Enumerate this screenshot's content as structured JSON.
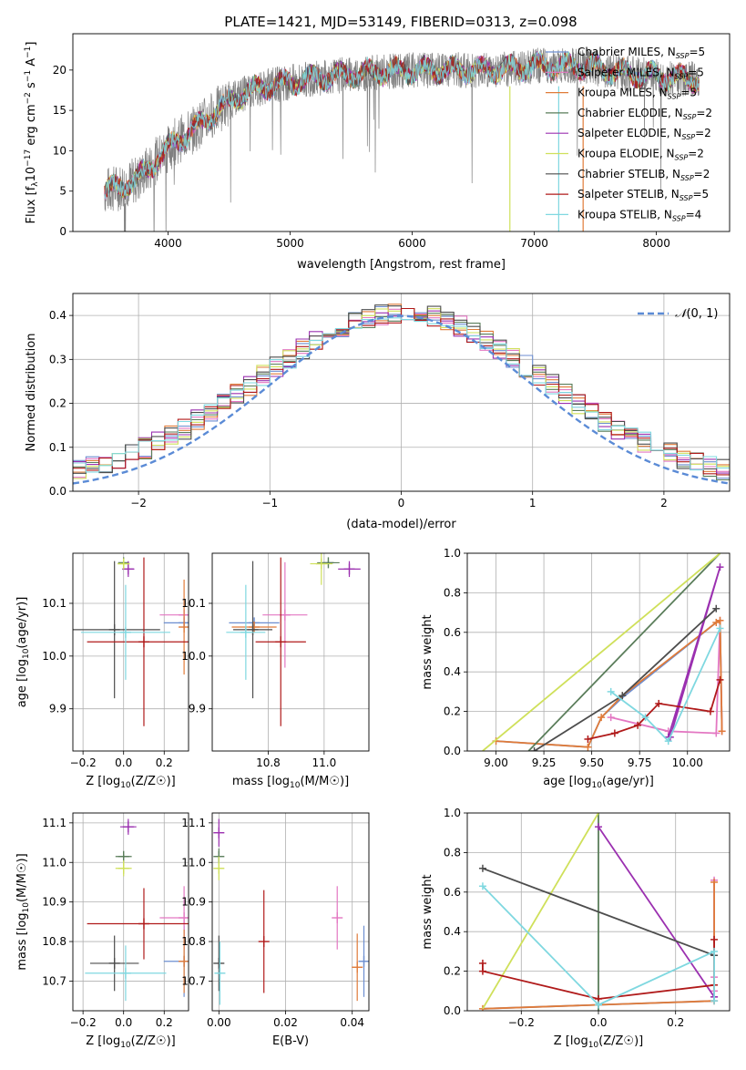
{
  "title": "PLATE=1421, MJD=53149, FIBERID=0313, z=0.098",
  "series": [
    {
      "name": "Chabrier MILES, N_SSP=5",
      "sub": "SSP",
      "label_pre": "Chabrier MILES, N",
      "label_post": "=5",
      "color": "#6c8ed0"
    },
    {
      "name": "Salpeter MILES, N_SSP=5",
      "sub": "SSP",
      "label_pre": "Salpeter MILES, N",
      "label_post": "=5",
      "color": "#e377c2"
    },
    {
      "name": "Kroupa MILES, N_SSP=5",
      "sub": "SSP",
      "label_pre": "Kroupa MILES, N",
      "label_post": "=5",
      "color": "#e07b39"
    },
    {
      "name": "Chabrier ELODIE, N_SSP=2",
      "sub": "SSP",
      "label_pre": "Chabrier ELODIE, N",
      "label_post": "=2",
      "color": "#5a7d5a"
    },
    {
      "name": "Salpeter ELODIE, N_SSP=2",
      "sub": "SSP",
      "label_pre": "Salpeter ELODIE, N",
      "label_post": "=2",
      "color": "#9b30b0"
    },
    {
      "name": "Kroupa ELODIE, N_SSP=2",
      "sub": "SSP",
      "label_pre": "Kroupa ELODIE, N",
      "label_post": "=2",
      "color": "#cfe05a"
    },
    {
      "name": "Chabrier STELIB, N_SSP=2",
      "sub": "SSP",
      "label_pre": "Chabrier STELIB, N",
      "label_post": "=2",
      "color": "#4d4d4d"
    },
    {
      "name": "Salpeter STELIB, N_SSP=5",
      "sub": "SSP",
      "label_pre": "Salpeter STELIB, N",
      "label_post": "=5",
      "color": "#b01a1a"
    },
    {
      "name": "Kroupa STELIB, N_SSP=4",
      "sub": "SSP",
      "label_pre": "Kroupa STELIB, N",
      "label_post": "=4",
      "color": "#7fd8e0"
    }
  ],
  "chart_data": [
    {
      "type": "line",
      "title": "PLATE=1421, MJD=53149, FIBERID=0313, z=0.098",
      "xlabel": "wavelength [Angstrom, rest frame]",
      "ylabel": "Flux [f_λ 10^-17 erg cm^-2 s^-1 A^-1]",
      "ylabel_main": "Flux [f",
      "ylabel_parts": [
        "λ",
        "10",
        "−17",
        " erg cm",
        "−2",
        " s",
        "−1",
        " A",
        "−1",
        "]"
      ],
      "xlim": [
        3220,
        8600
      ],
      "ylim": [
        0,
        24.5
      ],
      "xticks": [
        4000,
        5000,
        6000,
        7000,
        8000
      ],
      "yticks": [
        0,
        5,
        10,
        15,
        20
      ],
      "legend": "right",
      "spectrum_knots": {
        "x": [
          3480,
          3600,
          3750,
          3850,
          3950,
          4050,
          4200,
          4400,
          4600,
          4800,
          5000,
          5200,
          5500,
          5800,
          6100,
          6400,
          6700,
          7000,
          7200,
          7400,
          7600,
          7800,
          8000,
          8200,
          8350
        ],
        "y": [
          5.0,
          5.5,
          6.5,
          8.0,
          9.5,
          11.0,
          12.5,
          15.0,
          17.0,
          18.0,
          18.5,
          19.0,
          19.5,
          19.8,
          20.0,
          20.0,
          20.0,
          20.5,
          20.5,
          20.5,
          20.0,
          19.5,
          19.3,
          19.0,
          18.8
        ]
      }
    },
    {
      "type": "bar",
      "xlabel": "(data-model)/error",
      "ylabel": "Normed distribution",
      "xlim": [
        -2.5,
        2.5
      ],
      "ylim": [
        0,
        0.45
      ],
      "xticks": [
        -2,
        -1,
        0,
        1,
        2
      ],
      "xtick_labels": [
        "−2",
        "−1",
        "0",
        "1",
        "2"
      ],
      "yticks": [
        0.0,
        0.1,
        0.2,
        0.3,
        0.4
      ],
      "ytick_labels": [
        "0.0",
        "0.1",
        "0.2",
        "0.3",
        "0.4"
      ],
      "bin_width": 0.1,
      "reference_curve": {
        "name": "N(0,1)",
        "label_main": "𝒩",
        "label_rest": "(0, 1)",
        "mean": 0,
        "sigma": 1,
        "color": "#5b8bd6"
      },
      "legend": "top-right"
    },
    {
      "type": "scatter",
      "xlabel": "Z [log10(Z/Z☉)]",
      "ylabel": "age [log10(age/yr)]",
      "xlim": [
        -0.25,
        0.32
      ],
      "ylim": [
        9.82,
        10.195
      ],
      "xticks": [
        -0.2,
        0.0,
        0.2
      ],
      "xtick_labels": [
        "−0.2",
        "0.0",
        "0.2"
      ],
      "yticks": [
        9.9,
        10.0,
        10.1
      ],
      "ytick_labels": [
        "9.9",
        "10.0",
        "10.1"
      ],
      "points": [
        {
          "series": 0,
          "x": 0.298,
          "y": 10.063,
          "xerr": 0.1,
          "yerr": 0.0
        },
        {
          "series": 1,
          "x": 0.298,
          "y": 10.078,
          "xerr": 0.12,
          "yerr": 0.0
        },
        {
          "series": 2,
          "x": 0.298,
          "y": 10.055,
          "xerr": 0.0,
          "yerr": 0.09
        },
        {
          "series": 3,
          "x": 0.0,
          "y": 10.177,
          "xerr": 0.0,
          "yerr": 0.005
        },
        {
          "series": 4,
          "x": 0.023,
          "y": 10.165,
          "xerr": 0.03,
          "yerr": 0.015
        },
        {
          "series": 5,
          "x": 0.0,
          "y": 10.175,
          "xerr": 0.03,
          "yerr": 0.01
        },
        {
          "series": 6,
          "x": -0.045,
          "y": 10.05,
          "xerr": 0.225,
          "yerr": 0.13
        },
        {
          "series": 7,
          "x": 0.1,
          "y": 10.027,
          "xerr": 0.28,
          "yerr": 0.16
        },
        {
          "series": 8,
          "x": 0.01,
          "y": 10.045,
          "xerr": 0.22,
          "yerr": 0.09
        }
      ]
    },
    {
      "type": "scatter",
      "xlabel": "mass [log10(M/M☉)]",
      "ylabel": "",
      "xlim": [
        10.6,
        11.16
      ],
      "ylim": [
        9.82,
        10.195
      ],
      "xticks": [
        10.8,
        11.0
      ],
      "xtick_labels": [
        "10.8",
        "11.0"
      ],
      "yticks": [
        9.9,
        10.0,
        10.1
      ],
      "ytick_labels": [
        "9.9",
        "10.0",
        "10.1"
      ],
      "points": [
        {
          "series": 0,
          "x": 10.75,
          "y": 10.063,
          "xerr": 0.09,
          "yerr": 0.0
        },
        {
          "series": 1,
          "x": 10.86,
          "y": 10.078,
          "xerr": 0.08,
          "yerr": 0.1
        },
        {
          "series": 2,
          "x": 10.75,
          "y": 10.055,
          "xerr": 0.08,
          "yerr": 0.0
        },
        {
          "series": 3,
          "x": 11.015,
          "y": 10.177,
          "xerr": 0.04,
          "yerr": 0.005
        },
        {
          "series": 4,
          "x": 11.09,
          "y": 10.165,
          "xerr": 0.04,
          "yerr": 0.015
        },
        {
          "series": 5,
          "x": 10.99,
          "y": 10.175,
          "xerr": 0.04,
          "yerr": 0.04
        },
        {
          "series": 6,
          "x": 10.745,
          "y": 10.05,
          "xerr": 0.07,
          "yerr": 0.13
        },
        {
          "series": 7,
          "x": 10.845,
          "y": 10.027,
          "xerr": 0.09,
          "yerr": 0.16
        },
        {
          "series": 8,
          "x": 10.72,
          "y": 10.045,
          "xerr": 0.07,
          "yerr": 0.09
        }
      ]
    },
    {
      "type": "line",
      "xlabel": "age [log10(age/yr)]",
      "ylabel": "mass weight",
      "xlim": [
        8.85,
        10.22
      ],
      "ylim": [
        0,
        1.0
      ],
      "xticks": [
        9.0,
        9.25,
        9.5,
        9.75,
        10.0
      ],
      "xtick_labels": [
        "9.00",
        "9.25",
        "9.50",
        "9.75",
        "10.00"
      ],
      "yticks": [
        0.0,
        0.2,
        0.4,
        0.6,
        0.8,
        1.0
      ],
      "ytick_labels": [
        "0.0",
        "0.2",
        "0.4",
        "0.6",
        "0.8",
        "1.0"
      ],
      "lines": [
        {
          "series": 0,
          "x": [
            9.0,
            9.48,
            9.55,
            9.66,
            10.15,
            10.17,
            10.18
          ],
          "y": [
            0.05,
            0.02,
            0.17,
            0.27,
            0.65,
            0.66,
            0.1
          ],
          "markers": false
        },
        {
          "series": 1,
          "x": [
            9.6,
            9.9,
            10.15,
            10.17,
            10.18
          ],
          "y": [
            0.17,
            0.1,
            0.09,
            0.66,
            0.1
          ],
          "markers": true
        },
        {
          "series": 2,
          "x": [
            9.0,
            9.48,
            9.55,
            9.66,
            10.15,
            10.17,
            10.18
          ],
          "y": [
            0.05,
            0.02,
            0.17,
            0.28,
            0.65,
            0.66,
            0.1
          ],
          "markers": true
        },
        {
          "series": 3,
          "x": [
            9.17,
            10.17
          ],
          "y": [
            0.0,
            1.0
          ],
          "markers": false
        },
        {
          "series": 4,
          "x": [
            9.9,
            10.17,
            9.91
          ],
          "y": [
            0.07,
            0.93,
            0.07
          ],
          "markers": true
        },
        {
          "series": 5,
          "x": [
            8.93,
            10.17
          ],
          "y": [
            0.0,
            1.0
          ],
          "markers": false
        },
        {
          "series": 6,
          "x": [
            9.2,
            9.66,
            10.15
          ],
          "y": [
            0.0,
            0.28,
            0.72
          ],
          "markers": true
        },
        {
          "series": 7,
          "x": [
            9.48,
            9.62,
            9.74,
            9.85,
            10.12,
            10.17
          ],
          "y": [
            0.06,
            0.09,
            0.13,
            0.24,
            0.2,
            0.36
          ],
          "markers": true
        },
        {
          "series": 8,
          "x": [
            9.6,
            9.78,
            9.9,
            10.17
          ],
          "y": [
            0.3,
            0.17,
            0.05,
            0.62
          ],
          "markers": true
        }
      ]
    },
    {
      "type": "scatter",
      "xlabel": "Z [log10(Z/Z☉)]",
      "ylabel": "mass [log10(M/M☉)]",
      "xlim": [
        -0.25,
        0.32
      ],
      "ylim": [
        10.625,
        11.125
      ],
      "xticks": [
        -0.2,
        0.0,
        0.2
      ],
      "xtick_labels": [
        "−0.2",
        "0.0",
        "0.2"
      ],
      "yticks": [
        10.7,
        10.8,
        10.9,
        11.0,
        11.1
      ],
      "ytick_labels": [
        "10.7",
        "10.8",
        "10.9",
        "11.0",
        "11.1"
      ],
      "points": [
        {
          "series": 0,
          "x": 0.298,
          "y": 10.75,
          "xerr": 0.1,
          "yerr": 0.09
        },
        {
          "series": 1,
          "x": 0.298,
          "y": 10.86,
          "xerr": 0.12,
          "yerr": 0.08
        },
        {
          "series": 2,
          "x": 0.298,
          "y": 10.75,
          "xerr": 0.0,
          "yerr": 0.08
        },
        {
          "series": 3,
          "x": 0.0,
          "y": 11.015,
          "xerr": 0.04,
          "yerr": 0.005
        },
        {
          "series": 4,
          "x": 0.023,
          "y": 11.09,
          "xerr": 0.04,
          "yerr": 0.02
        },
        {
          "series": 5,
          "x": 0.0,
          "y": 10.985,
          "xerr": 0.04,
          "yerr": 0.02
        },
        {
          "series": 6,
          "x": -0.045,
          "y": 10.745,
          "xerr": 0.12,
          "yerr": 0.07
        },
        {
          "series": 7,
          "x": 0.1,
          "y": 10.845,
          "xerr": 0.28,
          "yerr": 0.09
        },
        {
          "series": 8,
          "x": 0.01,
          "y": 10.72,
          "xerr": 0.2,
          "yerr": 0.07
        }
      ]
    },
    {
      "type": "scatter",
      "xlabel": "E(B-V)",
      "ylabel": "",
      "xlim": [
        -0.002,
        0.045
      ],
      "ylim": [
        10.625,
        11.125
      ],
      "xticks": [
        0.0,
        0.02,
        0.04
      ],
      "xtick_labels": [
        "0.00",
        "0.02",
        "0.04"
      ],
      "yticks": [
        10.7,
        10.8,
        10.9,
        11.0,
        11.1
      ],
      "ytick_labels": [
        "10.7",
        "10.8",
        "10.9",
        "11.0",
        "11.1"
      ],
      "points": [
        {
          "series": 0,
          "x": 0.0435,
          "y": 10.75,
          "xerr": 0.0,
          "yerr": 0.09
        },
        {
          "series": 1,
          "x": 0.0355,
          "y": 10.86,
          "xerr": 0.0,
          "yerr": 0.08
        },
        {
          "series": 2,
          "x": 0.0415,
          "y": 10.735,
          "xerr": 0.0,
          "yerr": 0.085
        },
        {
          "series": 3,
          "x": 0.0,
          "y": 11.015,
          "xerr": 0.0,
          "yerr": 0.02
        },
        {
          "series": 4,
          "x": 0.0,
          "y": 11.075,
          "xerr": 0.0,
          "yerr": 0.035
        },
        {
          "series": 5,
          "x": 0.0,
          "y": 10.985,
          "xerr": 0.0,
          "yerr": 0.03
        },
        {
          "series": 6,
          "x": 0.0,
          "y": 10.745,
          "xerr": 0.0,
          "yerr": 0.07
        },
        {
          "series": 7,
          "x": 0.0135,
          "y": 10.8,
          "xerr": 0.0,
          "yerr": 0.13
        },
        {
          "series": 8,
          "x": 0.0003,
          "y": 10.72,
          "xerr": 0.0,
          "yerr": 0.08
        }
      ]
    },
    {
      "type": "line",
      "xlabel": "Z [log10(Z/Z☉)]",
      "ylabel": "mass weight",
      "xlim": [
        -0.34,
        0.34
      ],
      "ylim": [
        0,
        1.0
      ],
      "xticks": [
        -0.2,
        0.0,
        0.2
      ],
      "xtick_labels": [
        "−0.2",
        "0.0",
        "0.2"
      ],
      "yticks": [
        0.0,
        0.2,
        0.4,
        0.6,
        0.8,
        1.0
      ],
      "ytick_labels": [
        "0.0",
        "0.2",
        "0.4",
        "0.6",
        "0.8",
        "1.0"
      ],
      "lines": [
        {
          "series": 0,
          "x": [
            -0.3,
            0.0,
            0.3,
            0.3
          ],
          "y": [
            0.01,
            0.03,
            0.05,
            0.65
          ],
          "markers": false
        },
        {
          "series": 1,
          "x": [
            0.3,
            0.3,
            0.3,
            0.3
          ],
          "y": [
            0.66,
            0.17,
            0.1,
            0.05
          ],
          "markers": true
        },
        {
          "series": 2,
          "x": [
            -0.3,
            0.0,
            0.3,
            0.3
          ],
          "y": [
            0.01,
            0.03,
            0.05,
            0.65
          ],
          "markers": true
        },
        {
          "series": 3,
          "x": [
            0.0,
            0.0
          ],
          "y": [
            0.0,
            1.0
          ],
          "markers": false
        },
        {
          "series": 4,
          "x": [
            0.3,
            0.0,
            0.3
          ],
          "y": [
            0.07,
            0.93,
            0.07
          ],
          "markers": true
        },
        {
          "series": 5,
          "x": [
            -0.3,
            0.0
          ],
          "y": [
            0.01,
            1.0
          ],
          "markers": false
        },
        {
          "series": 6,
          "x": [
            -0.3,
            0.3
          ],
          "y": [
            0.72,
            0.28
          ],
          "markers": true
        },
        {
          "series": 7,
          "x": [
            -0.3,
            -0.3,
            0.0,
            0.3,
            0.3
          ],
          "y": [
            0.24,
            0.2,
            0.06,
            0.13,
            0.36
          ],
          "markers": true
        },
        {
          "series": 8,
          "x": [
            -0.3,
            0.0,
            0.3,
            0.3
          ],
          "y": [
            0.63,
            0.03,
            0.3,
            0.05
          ],
          "markers": true
        }
      ]
    }
  ]
}
